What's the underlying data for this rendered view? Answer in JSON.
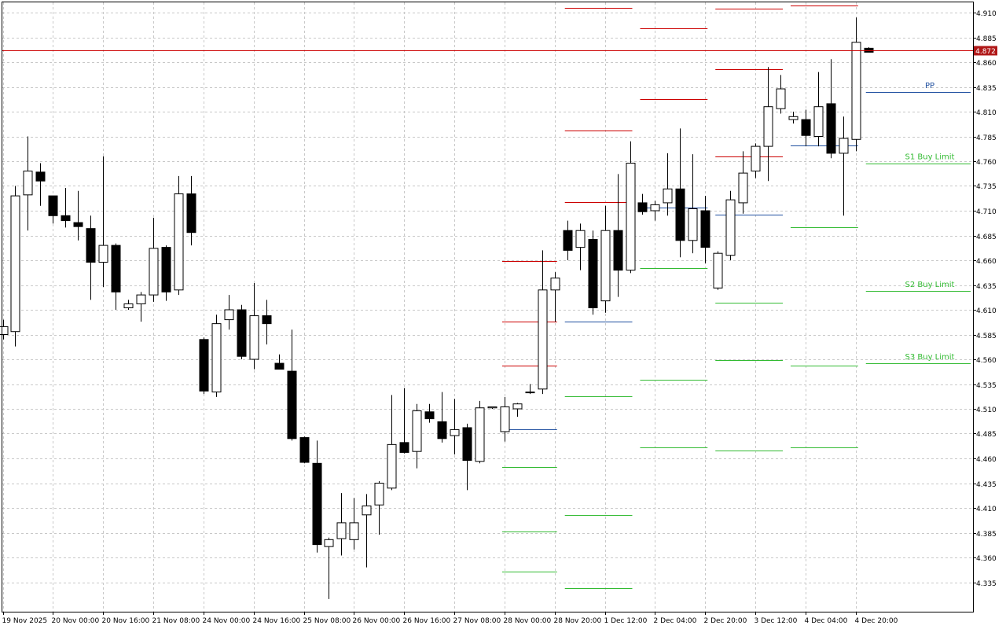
{
  "chart_data": {
    "type": "candlestick",
    "title": "",
    "ylim": [
      4.31,
      4.92
    ],
    "y_ticks": [
      "4.910",
      "4.885",
      "4.860",
      "4.835",
      "4.810",
      "4.785",
      "4.760",
      "4.735",
      "4.710",
      "4.685",
      "4.660",
      "4.635",
      "4.610",
      "4.585",
      "4.560",
      "4.535",
      "4.510",
      "4.485",
      "4.460",
      "4.435",
      "4.410",
      "4.385",
      "4.360",
      "4.335"
    ],
    "x_ticks": [
      {
        "label": "19 Nov 2025",
        "bar": 0
      },
      {
        "label": "20 Nov 00:00",
        "bar": 4
      },
      {
        "label": "20 Nov 16:00",
        "bar": 8
      },
      {
        "label": "21 Nov 08:00",
        "bar": 12
      },
      {
        "label": "24 Nov 00:00",
        "bar": 16
      },
      {
        "label": "24 Nov 16:00",
        "bar": 20
      },
      {
        "label": "25 Nov 08:00",
        "bar": 24
      },
      {
        "label": "26 Nov 00:00",
        "bar": 28
      },
      {
        "label": "26 Nov 16:00",
        "bar": 32
      },
      {
        "label": "27 Nov 08:00",
        "bar": 36
      },
      {
        "label": "28 Nov 00:00",
        "bar": 40
      },
      {
        "label": "28 Nov 20:00",
        "bar": 44
      },
      {
        "label": "1 Dec 12:00",
        "bar": 48
      },
      {
        "label": "2 Dec 04:00",
        "bar": 52
      },
      {
        "label": "2 Dec 20:00",
        "bar": 56
      },
      {
        "label": "3 Dec 12:00",
        "bar": 60
      },
      {
        "label": "4 Dec 04:00",
        "bar": 64
      },
      {
        "label": "4 Dec 20:00",
        "bar": 68
      }
    ],
    "candles": [
      {
        "o": 4.585,
        "h": 4.6,
        "l": 4.58,
        "c": 4.593
      },
      {
        "o": 4.588,
        "h": 4.735,
        "l": 4.573,
        "c": 4.725
      },
      {
        "o": 4.726,
        "h": 4.785,
        "l": 4.69,
        "c": 4.75
      },
      {
        "o": 4.749,
        "h": 4.758,
        "l": 4.715,
        "c": 4.74
      },
      {
        "o": 4.725,
        "h": 4.725,
        "l": 4.697,
        "c": 4.705
      },
      {
        "o": 4.705,
        "h": 4.733,
        "l": 4.693,
        "c": 4.7
      },
      {
        "o": 4.698,
        "h": 4.73,
        "l": 4.68,
        "c": 4.694
      },
      {
        "o": 4.692,
        "h": 4.705,
        "l": 4.62,
        "c": 4.658
      },
      {
        "o": 4.658,
        "h": 4.765,
        "l": 4.633,
        "c": 4.675
      },
      {
        "o": 4.675,
        "h": 4.677,
        "l": 4.61,
        "c": 4.628
      },
      {
        "o": 4.612,
        "h": 4.62,
        "l": 4.61,
        "c": 4.616
      },
      {
        "o": 4.616,
        "h": 4.628,
        "l": 4.598,
        "c": 4.625
      },
      {
        "o": 4.625,
        "h": 4.703,
        "l": 4.618,
        "c": 4.672
      },
      {
        "o": 4.673,
        "h": 4.675,
        "l": 4.619,
        "c": 4.628
      },
      {
        "o": 4.63,
        "h": 4.745,
        "l": 4.625,
        "c": 4.727
      },
      {
        "o": 4.727,
        "h": 4.745,
        "l": 4.675,
        "c": 4.688
      },
      {
        "o": 4.58,
        "h": 4.582,
        "l": 4.525,
        "c": 4.528
      },
      {
        "o": 4.527,
        "h": 4.605,
        "l": 4.522,
        "c": 4.596
      },
      {
        "o": 4.6,
        "h": 4.625,
        "l": 4.59,
        "c": 4.61
      },
      {
        "o": 4.61,
        "h": 4.615,
        "l": 4.56,
        "c": 4.563
      },
      {
        "o": 4.56,
        "h": 4.637,
        "l": 4.55,
        "c": 4.604
      },
      {
        "o": 4.604,
        "h": 4.62,
        "l": 4.575,
        "c": 4.596
      },
      {
        "o": 4.556,
        "h": 4.565,
        "l": 4.55,
        "c": 4.55
      },
      {
        "o": 4.548,
        "h": 4.59,
        "l": 4.478,
        "c": 4.48
      },
      {
        "o": 4.481,
        "h": 4.482,
        "l": 4.455,
        "c": 4.456
      },
      {
        "o": 4.455,
        "h": 4.478,
        "l": 4.365,
        "c": 4.373
      },
      {
        "o": 4.371,
        "h": 4.38,
        "l": 4.318,
        "c": 4.378
      },
      {
        "o": 4.379,
        "h": 4.425,
        "l": 4.362,
        "c": 4.395
      },
      {
        "o": 4.378,
        "h": 4.42,
        "l": 4.368,
        "c": 4.395
      },
      {
        "o": 4.403,
        "h": 4.424,
        "l": 4.35,
        "c": 4.412
      },
      {
        "o": 4.413,
        "h": 4.437,
        "l": 4.383,
        "c": 4.435
      },
      {
        "o": 4.43,
        "h": 4.524,
        "l": 4.428,
        "c": 4.474
      },
      {
        "o": 4.476,
        "h": 4.531,
        "l": 4.465,
        "c": 4.466
      },
      {
        "o": 4.467,
        "h": 4.515,
        "l": 4.45,
        "c": 4.508
      },
      {
        "o": 4.507,
        "h": 4.515,
        "l": 4.496,
        "c": 4.5
      },
      {
        "o": 4.497,
        "h": 4.527,
        "l": 4.476,
        "c": 4.48
      },
      {
        "o": 4.483,
        "h": 4.52,
        "l": 4.464,
        "c": 4.489
      },
      {
        "o": 4.491,
        "h": 4.495,
        "l": 4.428,
        "c": 4.458
      },
      {
        "o": 4.457,
        "h": 4.518,
        "l": 4.455,
        "c": 4.511
      },
      {
        "o": 4.511,
        "h": 4.512,
        "l": 4.51,
        "c": 4.512
      },
      {
        "o": 4.487,
        "h": 4.522,
        "l": 4.477,
        "c": 4.512
      },
      {
        "o": 4.51,
        "h": 4.516,
        "l": 4.502,
        "c": 4.515
      },
      {
        "o": 4.527,
        "h": 4.535,
        "l": 4.525,
        "c": 4.527
      },
      {
        "o": 4.53,
        "h": 4.67,
        "l": 4.525,
        "c": 4.63
      },
      {
        "o": 4.63,
        "h": 4.648,
        "l": 4.598,
        "c": 4.642
      },
      {
        "o": 4.69,
        "h": 4.7,
        "l": 4.66,
        "c": 4.67
      },
      {
        "o": 4.673,
        "h": 4.697,
        "l": 4.65,
        "c": 4.69
      },
      {
        "o": 4.681,
        "h": 4.69,
        "l": 4.605,
        "c": 4.612
      },
      {
        "o": 4.619,
        "h": 4.715,
        "l": 4.607,
        "c": 4.69
      },
      {
        "o": 4.69,
        "h": 4.747,
        "l": 4.623,
        "c": 4.65
      },
      {
        "o": 4.65,
        "h": 4.78,
        "l": 4.647,
        "c": 4.758
      },
      {
        "o": 4.718,
        "h": 4.727,
        "l": 4.706,
        "c": 4.709
      },
      {
        "o": 4.71,
        "h": 4.72,
        "l": 4.7,
        "c": 4.716
      },
      {
        "o": 4.718,
        "h": 4.768,
        "l": 4.705,
        "c": 4.732
      },
      {
        "o": 4.732,
        "h": 4.793,
        "l": 4.663,
        "c": 4.68
      },
      {
        "o": 4.68,
        "h": 4.767,
        "l": 4.667,
        "c": 4.712
      },
      {
        "o": 4.71,
        "h": 4.725,
        "l": 4.657,
        "c": 4.673
      },
      {
        "o": 4.632,
        "h": 4.669,
        "l": 4.63,
        "c": 4.667
      },
      {
        "o": 4.665,
        "h": 4.73,
        "l": 4.66,
        "c": 4.721
      },
      {
        "o": 4.718,
        "h": 4.77,
        "l": 4.707,
        "c": 4.748
      },
      {
        "o": 4.75,
        "h": 4.778,
        "l": 4.743,
        "c": 4.775
      },
      {
        "o": 4.775,
        "h": 4.855,
        "l": 4.74,
        "c": 4.815
      },
      {
        "o": 4.813,
        "h": 4.847,
        "l": 4.808,
        "c": 4.833
      },
      {
        "o": 4.802,
        "h": 4.81,
        "l": 4.798,
        "c": 4.805
      },
      {
        "o": 4.802,
        "h": 4.812,
        "l": 4.775,
        "c": 4.786
      },
      {
        "o": 4.785,
        "h": 4.85,
        "l": 4.775,
        "c": 4.815
      },
      {
        "o": 4.818,
        "h": 4.863,
        "l": 4.763,
        "c": 4.768
      },
      {
        "o": 4.768,
        "h": 4.805,
        "l": 4.705,
        "c": 4.783
      },
      {
        "o": 4.782,
        "h": 4.905,
        "l": 4.77,
        "c": 4.88
      },
      {
        "o": 4.874,
        "h": 4.875,
        "l": 4.87,
        "c": 4.87
      }
    ],
    "levels": [
      {
        "color": "#cc0000",
        "from": 40,
        "to": 44,
        "y": 4.659
      },
      {
        "color": "#cc0000",
        "from": 40,
        "to": 44,
        "y": 4.598
      },
      {
        "color": "#cc0000",
        "from": 40,
        "to": 44,
        "y": 4.554
      },
      {
        "color": "#1f4fa0",
        "from": 40,
        "to": 44,
        "y": 4.489
      },
      {
        "color": "#33bb33",
        "from": 40,
        "to": 44,
        "y": 4.451
      },
      {
        "color": "#33bb33",
        "from": 40,
        "to": 44,
        "y": 4.386
      },
      {
        "color": "#33bb33",
        "from": 40,
        "to": 44,
        "y": 4.346
      },
      {
        "color": "#cc0000",
        "from": 45,
        "to": 50,
        "y": 4.915
      },
      {
        "color": "#cc0000",
        "from": 45,
        "to": 50,
        "y": 4.791
      },
      {
        "color": "#cc0000",
        "from": 45,
        "to": 50,
        "y": 4.719
      },
      {
        "color": "#1f4fa0",
        "from": 45,
        "to": 50,
        "y": 4.598
      },
      {
        "color": "#33bb33",
        "from": 45,
        "to": 50,
        "y": 4.523
      },
      {
        "color": "#33bb33",
        "from": 45,
        "to": 50,
        "y": 4.403
      },
      {
        "color": "#33bb33",
        "from": 45,
        "to": 50,
        "y": 4.329
      },
      {
        "color": "#cc0000",
        "from": 51,
        "to": 56,
        "y": 4.894
      },
      {
        "color": "#cc0000",
        "from": 51,
        "to": 56,
        "y": 4.823
      },
      {
        "color": "#1f4fa0",
        "from": 51,
        "to": 56,
        "y": 4.713
      },
      {
        "color": "#33bb33",
        "from": 51,
        "to": 56,
        "y": 4.652
      },
      {
        "color": "#33bb33",
        "from": 51,
        "to": 56,
        "y": 4.539
      },
      {
        "color": "#33bb33",
        "from": 51,
        "to": 56,
        "y": 4.471
      },
      {
        "color": "#cc0000",
        "from": 57,
        "to": 62,
        "y": 4.914
      },
      {
        "color": "#cc0000",
        "from": 57,
        "to": 62,
        "y": 4.853
      },
      {
        "color": "#cc0000",
        "from": 57,
        "to": 62,
        "y": 4.765
      },
      {
        "color": "#1f4fa0",
        "from": 57,
        "to": 62,
        "y": 4.706
      },
      {
        "color": "#33bb33",
        "from": 57,
        "to": 62,
        "y": 4.617
      },
      {
        "color": "#33bb33",
        "from": 57,
        "to": 62,
        "y": 4.559
      },
      {
        "color": "#33bb33",
        "from": 57,
        "to": 62,
        "y": 4.468
      },
      {
        "color": "#cc0000",
        "from": 63,
        "to": 68,
        "y": 4.917
      },
      {
        "color": "#1f4fa0",
        "from": 63,
        "to": 68,
        "y": 4.776
      },
      {
        "color": "#33bb33",
        "from": 63,
        "to": 68,
        "y": 4.693
      },
      {
        "color": "#33bb33",
        "from": 63,
        "to": 68,
        "y": 4.554
      },
      {
        "color": "#33bb33",
        "from": 63,
        "to": 68,
        "y": 4.471
      },
      {
        "color": "#1f4fa0",
        "from": 69,
        "to": 77,
        "y": 4.83
      },
      {
        "color": "#33bb33",
        "from": 69,
        "to": 77,
        "y": 4.758
      },
      {
        "color": "#33bb33",
        "from": 69,
        "to": 77,
        "y": 4.629
      },
      {
        "color": "#33bb33",
        "from": 69,
        "to": 77,
        "y": 4.556
      }
    ],
    "level_labels": [
      {
        "text": "PP",
        "y": 4.83,
        "color": "#1f4fa0"
      },
      {
        "text": "S1 Buy Limit",
        "y": 4.758,
        "color": "#33bb33"
      },
      {
        "text": "S2 Buy Limit",
        "y": 4.629,
        "color": "#33bb33"
      },
      {
        "text": "S3 Buy Limit",
        "y": 4.556,
        "color": "#33bb33"
      }
    ],
    "current_price": {
      "value": 4.872,
      "label": "4.872",
      "color": "#cc0000"
    },
    "colors": {
      "bull_body": "#ffffff",
      "bear_body": "#000000",
      "wick": "#000000",
      "grid": "#c8c8c8",
      "axis": "#000000"
    },
    "grid": true
  }
}
